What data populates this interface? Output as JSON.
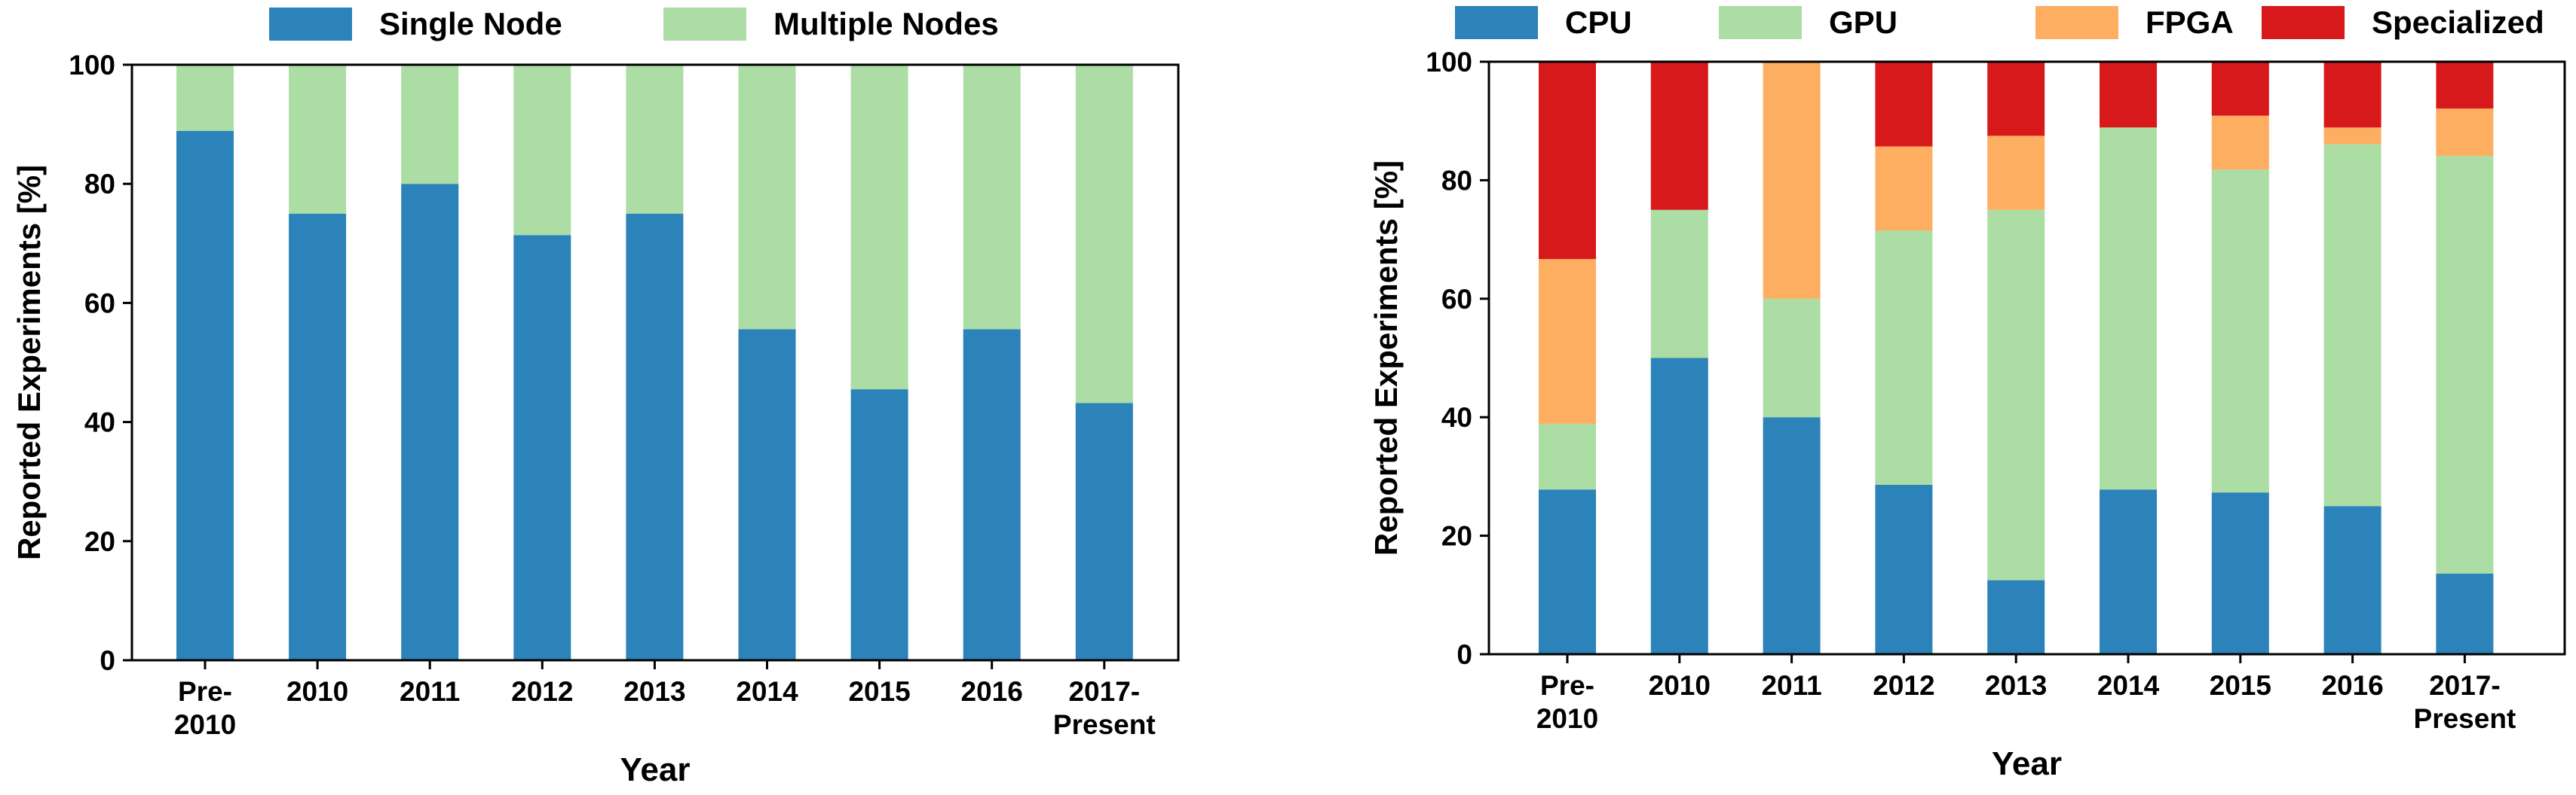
{
  "chart_data": [
    {
      "type": "bar",
      "stacked": true,
      "categories": [
        [
          "Pre-",
          "2010"
        ],
        [
          "2010"
        ],
        [
          "2011"
        ],
        [
          "2012"
        ],
        [
          "2013"
        ],
        [
          "2014"
        ],
        [
          "2015"
        ],
        [
          "2016"
        ],
        [
          "2017-",
          "Present"
        ]
      ],
      "series": [
        {
          "name": "Single Node",
          "color": "#2b83ba",
          "values": [
            88.9,
            75.0,
            80.0,
            71.4,
            75.0,
            55.6,
            45.5,
            55.6,
            43.2
          ]
        },
        {
          "name": "Multiple Nodes",
          "color": "#abdda4",
          "values": [
            11.1,
            25.0,
            20.0,
            28.6,
            25.0,
            44.4,
            54.5,
            44.4,
            56.8
          ]
        }
      ],
      "xlabel": "Year",
      "ylabel": "Reported Experiments [%]",
      "ylim": [
        0,
        100
      ],
      "yticks": [
        0,
        20,
        40,
        60,
        80,
        100
      ],
      "grid": false,
      "legend_position": "top"
    },
    {
      "type": "bar",
      "stacked": true,
      "categories": [
        [
          "Pre-",
          "2010"
        ],
        [
          "2010"
        ],
        [
          "2011"
        ],
        [
          "2012"
        ],
        [
          "2013"
        ],
        [
          "2014"
        ],
        [
          "2015"
        ],
        [
          "2016"
        ],
        [
          "2017-",
          "Present"
        ]
      ],
      "series": [
        {
          "name": "CPU",
          "color": "#2b83ba",
          "values": [
            27.8,
            50.0,
            40.0,
            28.6,
            12.5,
            27.8,
            27.3,
            25.0,
            13.6
          ]
        },
        {
          "name": "GPU",
          "color": "#abdda4",
          "values": [
            11.1,
            25.0,
            20.0,
            42.9,
            62.5,
            61.1,
            54.5,
            61.1,
            70.5
          ]
        },
        {
          "name": "FPGA",
          "color": "#fdae61",
          "values": [
            27.8,
            0.0,
            40.0,
            14.2,
            12.5,
            0.0,
            9.1,
            2.8,
            8.0
          ]
        },
        {
          "name": "Specialized",
          "color": "#d7191c",
          "values": [
            33.3,
            25.0,
            0.0,
            14.3,
            12.5,
            11.1,
            9.1,
            11.1,
            7.9
          ]
        }
      ],
      "xlabel": "Year",
      "ylabel": "Reported Experiments [%]",
      "ylim": [
        0,
        100
      ],
      "yticks": [
        0,
        20,
        40,
        60,
        80,
        100
      ],
      "grid": false,
      "legend_position": "top"
    }
  ]
}
